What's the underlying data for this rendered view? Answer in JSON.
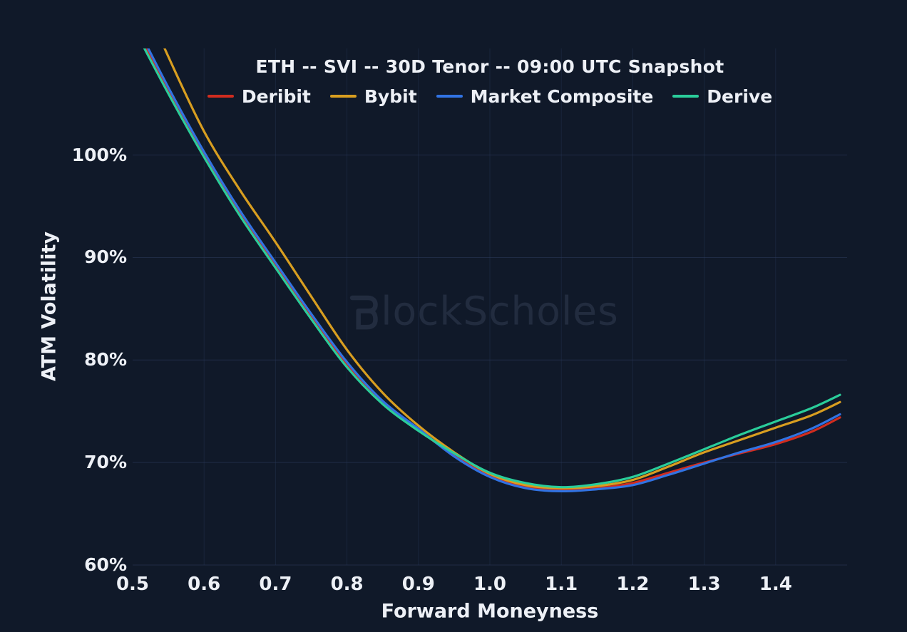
{
  "title": "ETH -- SVI -- 30D Tenor -- 09:00 UTC Snapshot",
  "watermark": {
    "brand": "BlockScholes",
    "text_after_logo": "lockScholes"
  },
  "colors": {
    "background": "#101929",
    "grid": "#2b3a5c",
    "text": "#edf0f6",
    "watermark": "#222c3f",
    "deribit_red": "#d02c1f",
    "bybit_orange": "#d89e20",
    "composite_blue": "#3173e3",
    "derive_green": "#2acd9a"
  },
  "chart_data": {
    "type": "line",
    "title": "ETH -- SVI -- 30D Tenor -- 09:00 UTC Snapshot",
    "xlabel": "Forward Moneyness",
    "ylabel": "ATM Volatility",
    "xlim": [
      0.5,
      1.5
    ],
    "ylim_pct": [
      60,
      110.4
    ],
    "grid": true,
    "legend_position": "top",
    "x_ticks": [
      0.5,
      0.6,
      0.7,
      0.8,
      0.9,
      1.0,
      1.1,
      1.2,
      1.3,
      1.4
    ],
    "x_tick_labels": [
      "0.5",
      "0.6",
      "0.7",
      "0.8",
      "0.9",
      "1.0",
      "1.1",
      "1.2",
      "1.3",
      "1.4"
    ],
    "x_gridlines": [
      0.6,
      0.7,
      0.8,
      0.9,
      1.0,
      1.1,
      1.2,
      1.3,
      1.4
    ],
    "y_ticks_pct": [
      60,
      70,
      80,
      90,
      100
    ],
    "y_tick_labels": [
      "60%",
      "70%",
      "80%",
      "90%",
      "100%"
    ],
    "x": [
      0.5,
      0.55,
      0.6,
      0.65,
      0.7,
      0.75,
      0.8,
      0.85,
      0.9,
      0.95,
      1.0,
      1.05,
      1.1,
      1.15,
      1.2,
      1.25,
      1.3,
      1.35,
      1.4,
      1.45,
      1.49
    ],
    "series": [
      {
        "name": "Deribit",
        "color": "#d02c1f",
        "values_pct": [
          113.0,
          106.3,
          100.1,
          94.4,
          89.3,
          84.3,
          79.6,
          75.9,
          73.2,
          70.7,
          68.7,
          67.6,
          67.3,
          67.5,
          68.0,
          69.0,
          70.0,
          70.9,
          71.8,
          73.0,
          74.4
        ]
      },
      {
        "name": "Bybit",
        "color": "#d89e20",
        "values_pct": [
          117.5,
          109.6,
          102.3,
          96.6,
          91.5,
          86.2,
          81.0,
          76.8,
          73.6,
          71.0,
          68.9,
          67.8,
          67.5,
          67.7,
          68.3,
          69.6,
          71.0,
          72.2,
          73.4,
          74.6,
          75.9
        ]
      },
      {
        "name": "Market Composite",
        "color": "#3173e3",
        "values_pct": [
          113.4,
          106.6,
          100.3,
          94.6,
          89.5,
          84.5,
          79.8,
          76.0,
          73.3,
          70.6,
          68.6,
          67.5,
          67.2,
          67.4,
          67.8,
          68.8,
          69.9,
          71.0,
          72.0,
          73.3,
          74.7
        ]
      },
      {
        "name": "Derive",
        "color": "#2acd9a",
        "values_pct": [
          112.6,
          106.0,
          99.8,
          94.1,
          89.0,
          84.0,
          79.3,
          75.7,
          73.1,
          70.9,
          69.0,
          68.0,
          67.6,
          67.9,
          68.6,
          69.9,
          71.3,
          72.7,
          74.0,
          75.3,
          76.6
        ]
      }
    ]
  }
}
